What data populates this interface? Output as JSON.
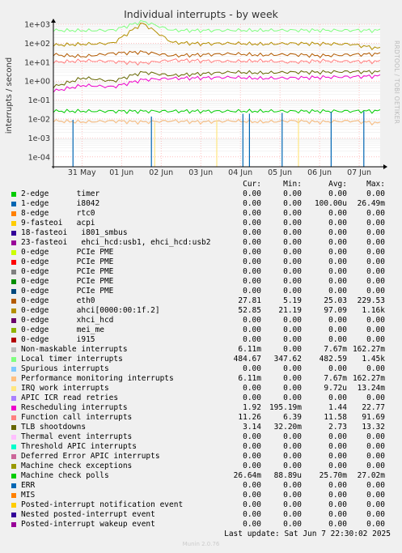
{
  "title": "Individual interrupts - by week",
  "side_label": "RRDTOOL / TOBI OETIKER",
  "footer": {
    "last_update": "Last update:  Sat Jun  7 22:30:02 2025",
    "generator": "Munin 2.0.76"
  },
  "legend_header": {
    "cur": "Cur:",
    "min": "Min:",
    "avg": "Avg:",
    "max": "Max:"
  },
  "legend": [
    {
      "label": "2-edge      timer",
      "color": "#00cc00",
      "cur": "0.00",
      "min": "0.00",
      "avg": "0.00",
      "max": "0.00"
    },
    {
      "label": "1-edge      i8042",
      "color": "#0066b3",
      "cur": "0.00",
      "min": "0.00",
      "avg": "100.00u",
      "max": "26.49m"
    },
    {
      "label": "8-edge      rtc0",
      "color": "#ff8000",
      "cur": "0.00",
      "min": "0.00",
      "avg": "0.00",
      "max": "0.00"
    },
    {
      "label": "9-fasteoi   acpi",
      "color": "#ffcc00",
      "cur": "0.00",
      "min": "0.00",
      "avg": "0.00",
      "max": "0.00"
    },
    {
      "label": "18-fasteoi   i801_smbus",
      "color": "#330099",
      "cur": "0.00",
      "min": "0.00",
      "avg": "0.00",
      "max": "0.00"
    },
    {
      "label": "23-fasteoi   ehci_hcd:usb1, ehci_hcd:usb2",
      "color": "#990099",
      "cur": "0.00",
      "min": "0.00",
      "avg": "0.00",
      "max": "0.00"
    },
    {
      "label": "0-edge      PCIe PME",
      "color": "#ccff00",
      "cur": "0.00",
      "min": "0.00",
      "avg": "0.00",
      "max": "0.00"
    },
    {
      "label": "0-edge      PCIe PME",
      "color": "#ff0000",
      "cur": "0.00",
      "min": "0.00",
      "avg": "0.00",
      "max": "0.00"
    },
    {
      "label": "0-edge      PCIe PME",
      "color": "#808080",
      "cur": "0.00",
      "min": "0.00",
      "avg": "0.00",
      "max": "0.00"
    },
    {
      "label": "0-edge      PCIe PME",
      "color": "#008f00",
      "cur": "0.00",
      "min": "0.00",
      "avg": "0.00",
      "max": "0.00"
    },
    {
      "label": "0-edge      PCIe PME",
      "color": "#00487d",
      "cur": "0.00",
      "min": "0.00",
      "avg": "0.00",
      "max": "0.00"
    },
    {
      "label": "0-edge      eth0",
      "color": "#b35a00",
      "cur": "27.81",
      "min": "5.19",
      "avg": "25.03",
      "max": "229.53"
    },
    {
      "label": "0-edge      ahci[0000:00:1f.2]",
      "color": "#b38f00",
      "cur": "52.85",
      "min": "21.19",
      "avg": "97.09",
      "max": "1.16k"
    },
    {
      "label": "0-edge      xhci_hcd",
      "color": "#6b006b",
      "cur": "0.00",
      "min": "0.00",
      "avg": "0.00",
      "max": "0.00"
    },
    {
      "label": "0-edge      mei_me",
      "color": "#8fb300",
      "cur": "0.00",
      "min": "0.00",
      "avg": "0.00",
      "max": "0.00"
    },
    {
      "label": "0-edge      i915",
      "color": "#b30000",
      "cur": "0.00",
      "min": "0.00",
      "avg": "0.00",
      "max": "0.00"
    },
    {
      "label": "Non-maskable interrupts",
      "color": "#bebebe",
      "cur": "6.11m",
      "min": "0.00",
      "avg": "7.67m",
      "max": "162.27m"
    },
    {
      "label": "Local timer interrupts",
      "color": "#80ff80",
      "cur": "484.67",
      "min": "347.62",
      "avg": "482.59",
      "max": "1.45k"
    },
    {
      "label": "Spurious interrupts",
      "color": "#80c9ff",
      "cur": "0.00",
      "min": "0.00",
      "avg": "0.00",
      "max": "0.00"
    },
    {
      "label": "Performance monitoring interrupts",
      "color": "#ffc080",
      "cur": "6.11m",
      "min": "0.00",
      "avg": "7.67m",
      "max": "162.27m"
    },
    {
      "label": "IRQ work interrupts",
      "color": "#ffe680",
      "cur": "0.00",
      "min": "0.00",
      "avg": "9.72u",
      "max": "13.24m"
    },
    {
      "label": "APIC ICR read retries",
      "color": "#aa80ff",
      "cur": "0.00",
      "min": "0.00",
      "avg": "0.00",
      "max": "0.00"
    },
    {
      "label": "Rescheduling interrupts",
      "color": "#ee00cc",
      "cur": "1.92",
      "min": "195.19m",
      "avg": "1.44",
      "max": "22.77"
    },
    {
      "label": "Function call interrupts",
      "color": "#ff8080",
      "cur": "11.26",
      "min": "6.39",
      "avg": "11.58",
      "max": "91.69"
    },
    {
      "label": "TLB shootdowns",
      "color": "#666600",
      "cur": "3.14",
      "min": "32.20m",
      "avg": "2.73",
      "max": "13.32"
    },
    {
      "label": "Thermal event interrupts",
      "color": "#ffbfff",
      "cur": "0.00",
      "min": "0.00",
      "avg": "0.00",
      "max": "0.00"
    },
    {
      "label": "Threshold APIC interrupts",
      "color": "#00ffcc",
      "cur": "0.00",
      "min": "0.00",
      "avg": "0.00",
      "max": "0.00"
    },
    {
      "label": "Deferred Error APIC interrupts",
      "color": "#cc6699",
      "cur": "0.00",
      "min": "0.00",
      "avg": "0.00",
      "max": "0.00"
    },
    {
      "label": "Machine check exceptions",
      "color": "#999900",
      "cur": "0.00",
      "min": "0.00",
      "avg": "0.00",
      "max": "0.00"
    },
    {
      "label": "Machine check polls",
      "color": "#00cc00",
      "cur": "26.64m",
      "min": "88.89u",
      "avg": "25.70m",
      "max": "27.02m"
    },
    {
      "label": "ERR",
      "color": "#0066b3",
      "cur": "0.00",
      "min": "0.00",
      "avg": "0.00",
      "max": "0.00"
    },
    {
      "label": "MIS",
      "color": "#ff8000",
      "cur": "0.00",
      "min": "0.00",
      "avg": "0.00",
      "max": "0.00"
    },
    {
      "label": "Posted-interrupt notification event",
      "color": "#ffcc00",
      "cur": "0.00",
      "min": "0.00",
      "avg": "0.00",
      "max": "0.00"
    },
    {
      "label": "Nested posted-interrupt event",
      "color": "#330099",
      "cur": "0.00",
      "min": "0.00",
      "avg": "0.00",
      "max": "0.00"
    },
    {
      "label": "Posted-interrupt wakeup event",
      "color": "#990099",
      "cur": "0.00",
      "min": "0.00",
      "avg": "0.00",
      "max": "0.00"
    }
  ],
  "chart_data": {
    "type": "line",
    "title": "Individual interrupts - by week",
    "ylabel": "interrupts / second",
    "yscale": "log",
    "ylim": [
      3e-05,
      1000
    ],
    "yticks": [
      "1e+03",
      "1e+02",
      "1e+01",
      "1e+00",
      "1e-01",
      "1e-02",
      "1e-03",
      "1e-04"
    ],
    "xtick_labels": [
      "31 May",
      "01 Jun",
      "02 Jun",
      "03 Jun",
      "04 Jun",
      "05 Jun",
      "06 Jun",
      "07 Jun"
    ],
    "grid": true,
    "series": [
      {
        "name": "Local timer interrupts",
        "color": "#80ff80",
        "values": [
          480,
          470,
          490,
          1450,
          480,
          475,
          485,
          480,
          490,
          485,
          480,
          484
        ]
      },
      {
        "name": "0-edge      ahci[0000:00:1f.2]",
        "color": "#b38f00",
        "values": [
          80,
          90,
          100,
          1160,
          110,
          95,
          100,
          90,
          100,
          95,
          90,
          53
        ]
      },
      {
        "name": "0-edge      eth0",
        "color": "#b35a00",
        "values": [
          25,
          20,
          30,
          35,
          22,
          25,
          28,
          24,
          26,
          22,
          25,
          28
        ]
      },
      {
        "name": "Function call interrupts",
        "color": "#ff8080",
        "values": [
          10,
          12,
          11,
          9,
          13,
          12,
          11,
          12,
          10,
          12,
          11,
          11
        ]
      },
      {
        "name": "TLB shootdowns",
        "color": "#666600",
        "values": [
          0.5,
          1.5,
          1.0,
          3,
          2,
          2.5,
          3,
          2.7,
          3,
          3,
          3.2,
          3.1
        ]
      },
      {
        "name": "Rescheduling interrupts",
        "color": "#ee00cc",
        "values": [
          0.3,
          0.6,
          0.5,
          1.2,
          1.4,
          1.5,
          1.6,
          1.4,
          1.5,
          1.6,
          1.7,
          1.9
        ]
      },
      {
        "name": "Machine check polls",
        "color": "#00cc00",
        "values": [
          0.026,
          0.026,
          0.026,
          0.026,
          0.026,
          0.026,
          0.026,
          0.026,
          0.026,
          0.026,
          0.026,
          0.027
        ]
      },
      {
        "name": "Non-maskable interrupts",
        "color": "#bebebe",
        "values": [
          0.008,
          0.007,
          0.008,
          0.007,
          0.008,
          0.007,
          0.008,
          0.007,
          0.008,
          0.007,
          0.008,
          0.006
        ]
      },
      {
        "name": "Performance monitoring interrupts",
        "color": "#ffc080",
        "values": [
          0.008,
          0.007,
          0.008,
          0.007,
          0.008,
          0.007,
          0.008,
          0.007,
          0.008,
          0.007,
          0.008,
          0.006
        ]
      },
      {
        "name": "1-edge      i8042",
        "color": "#0066b3",
        "spike_positions": [
          0.06,
          0.3,
          0.58,
          0.6,
          0.7,
          0.85,
          0.95
        ],
        "spike_value": 0.02649
      },
      {
        "name": "IRQ work interrupts",
        "color": "#ffe680",
        "spike_positions": [
          0.31,
          0.5,
          0.75
        ],
        "spike_value": 0.01324
      }
    ]
  }
}
